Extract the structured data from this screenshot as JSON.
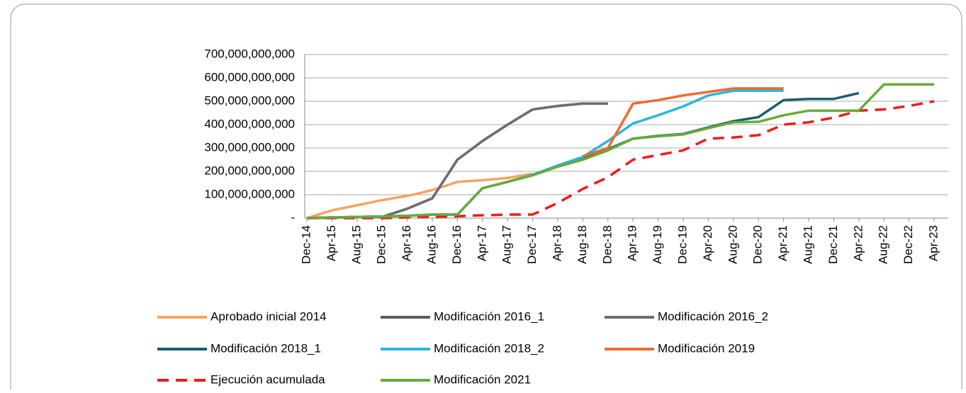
{
  "chart_data": {
    "type": "line",
    "categories": [
      "Dec-14",
      "Apr-15",
      "Aug-15",
      "Dec-15",
      "Apr-16",
      "Aug-16",
      "Dec-16",
      "Apr-17",
      "Aug-17",
      "Dec-17",
      "Apr-18",
      "Aug-18",
      "Dec-18",
      "Apr-19",
      "Aug-19",
      "Dec-19",
      "Apr-20",
      "Aug-20",
      "Dec-20",
      "Apr-21",
      "Aug-21",
      "Dec-21",
      "Apr-22",
      "Aug-22",
      "Dec-22",
      "Apr-23"
    ],
    "ylim": [
      0,
      700000000000
    ],
    "yticks": [
      {
        "value": 0,
        "label": "-"
      },
      {
        "value": 100000000000,
        "label": "100,000,000,000"
      },
      {
        "value": 200000000000,
        "label": "200,000,000,000"
      },
      {
        "value": 300000000000,
        "label": "300,000,000,000"
      },
      {
        "value": 400000000000,
        "label": "400,000,000,000"
      },
      {
        "value": 500000000000,
        "label": "500,000,000,000"
      },
      {
        "value": 600000000000,
        "label": "600,000,000,000"
      },
      {
        "value": 700000000000,
        "label": "700,000,000,000"
      }
    ],
    "grid": true,
    "legend": "bottom",
    "series": [
      {
        "name": "Aprobado inicial 2014",
        "color": "#f4a460",
        "values": [
          0,
          33000000000.0,
          55000000000.0,
          77000000000.0,
          95000000000.0,
          120000000000.0,
          155000000000.0,
          162000000000.0,
          172000000000.0,
          190000000000.0,
          null,
          null,
          null,
          null,
          null,
          null,
          null,
          null,
          null,
          null,
          null,
          null,
          null,
          null,
          null,
          null
        ]
      },
      {
        "name": "Modificación 2016_1",
        "color": "#5a5d63",
        "values": [
          0,
          2000000000.0,
          5000000000.0,
          5000000000.0,
          40000000000.0,
          85000000000.0,
          250000000000.0,
          330000000000.0,
          400000000000.0,
          465000000000.0,
          480000000000.0,
          490000000000.0,
          490000000000.0,
          null,
          null,
          null,
          null,
          null,
          null,
          null,
          null,
          null,
          null,
          null,
          null,
          null
        ]
      },
      {
        "name": "Modificación 2016_2",
        "color": "#6b6e74",
        "values": [
          0,
          2000000000.0,
          5000000000.0,
          5000000000.0,
          40000000000.0,
          85000000000.0,
          250000000000.0,
          330000000000.0,
          400000000000.0,
          465000000000.0,
          480000000000.0,
          490000000000.0,
          490000000000.0,
          null,
          null,
          null,
          null,
          null,
          null,
          null,
          null,
          null,
          null,
          null,
          null,
          null
        ]
      },
      {
        "name": "Modificación 2018_1",
        "color": "#17606e",
        "values": [
          0,
          3000000000.0,
          5000000000.0,
          7000000000.0,
          10000000000.0,
          15000000000.0,
          15000000000.0,
          128000000000.0,
          155000000000.0,
          185000000000.0,
          225000000000.0,
          260000000000.0,
          295000000000.0,
          340000000000.0,
          352000000000.0,
          360000000000.0,
          388000000000.0,
          415000000000.0,
          432000000000.0,
          505000000000.0,
          510000000000.0,
          510000000000.0,
          535000000000.0,
          null,
          null,
          null
        ]
      },
      {
        "name": "Modificación 2018_2",
        "color": "#29b6e0",
        "values": [
          0,
          3000000000.0,
          5000000000.0,
          7000000000.0,
          10000000000.0,
          15000000000.0,
          15000000000.0,
          128000000000.0,
          155000000000.0,
          185000000000.0,
          225000000000.0,
          262000000000.0,
          330000000000.0,
          405000000000.0,
          440000000000.0,
          478000000000.0,
          525000000000.0,
          545000000000.0,
          545000000000.0,
          545000000000.0,
          null,
          null,
          null,
          null,
          null,
          null
        ]
      },
      {
        "name": "Modificación 2019",
        "color": "#ef6a2f",
        "values": [
          null,
          null,
          null,
          null,
          null,
          null,
          null,
          null,
          null,
          null,
          null,
          265000000000.0,
          300000000000.0,
          490000000000.0,
          505000000000.0,
          525000000000.0,
          540000000000.0,
          555000000000.0,
          555000000000.0,
          555000000000.0,
          null,
          null,
          null,
          null,
          null,
          null
        ]
      },
      {
        "name": "Ejecución acumulada",
        "color": "#ee1c1c",
        "dash": true,
        "values": [
          0,
          0,
          0,
          0,
          3000000000.0,
          5000000000.0,
          8000000000.0,
          12000000000.0,
          15000000000.0,
          15000000000.0,
          65000000000.0,
          125000000000.0,
          175000000000.0,
          250000000000.0,
          270000000000.0,
          290000000000.0,
          340000000000.0,
          345000000000.0,
          355000000000.0,
          400000000000.0,
          410000000000.0,
          430000000000.0,
          460000000000.0,
          465000000000.0,
          480000000000.0,
          500000000000.0
        ]
      },
      {
        "name": "Modificación 2021",
        "color": "#6aaa3a",
        "values": [
          0,
          3000000000.0,
          5000000000.0,
          7000000000.0,
          10000000000.0,
          15000000000.0,
          15000000000.0,
          128000000000.0,
          155000000000.0,
          183000000000.0,
          220000000000.0,
          250000000000.0,
          290000000000.0,
          340000000000.0,
          350000000000.0,
          358000000000.0,
          385000000000.0,
          410000000000.0,
          412000000000.0,
          440000000000.0,
          460000000000.0,
          460000000000.0,
          460000000000.0,
          572000000000.0,
          572000000000.0,
          572000000000.0
        ]
      }
    ]
  }
}
